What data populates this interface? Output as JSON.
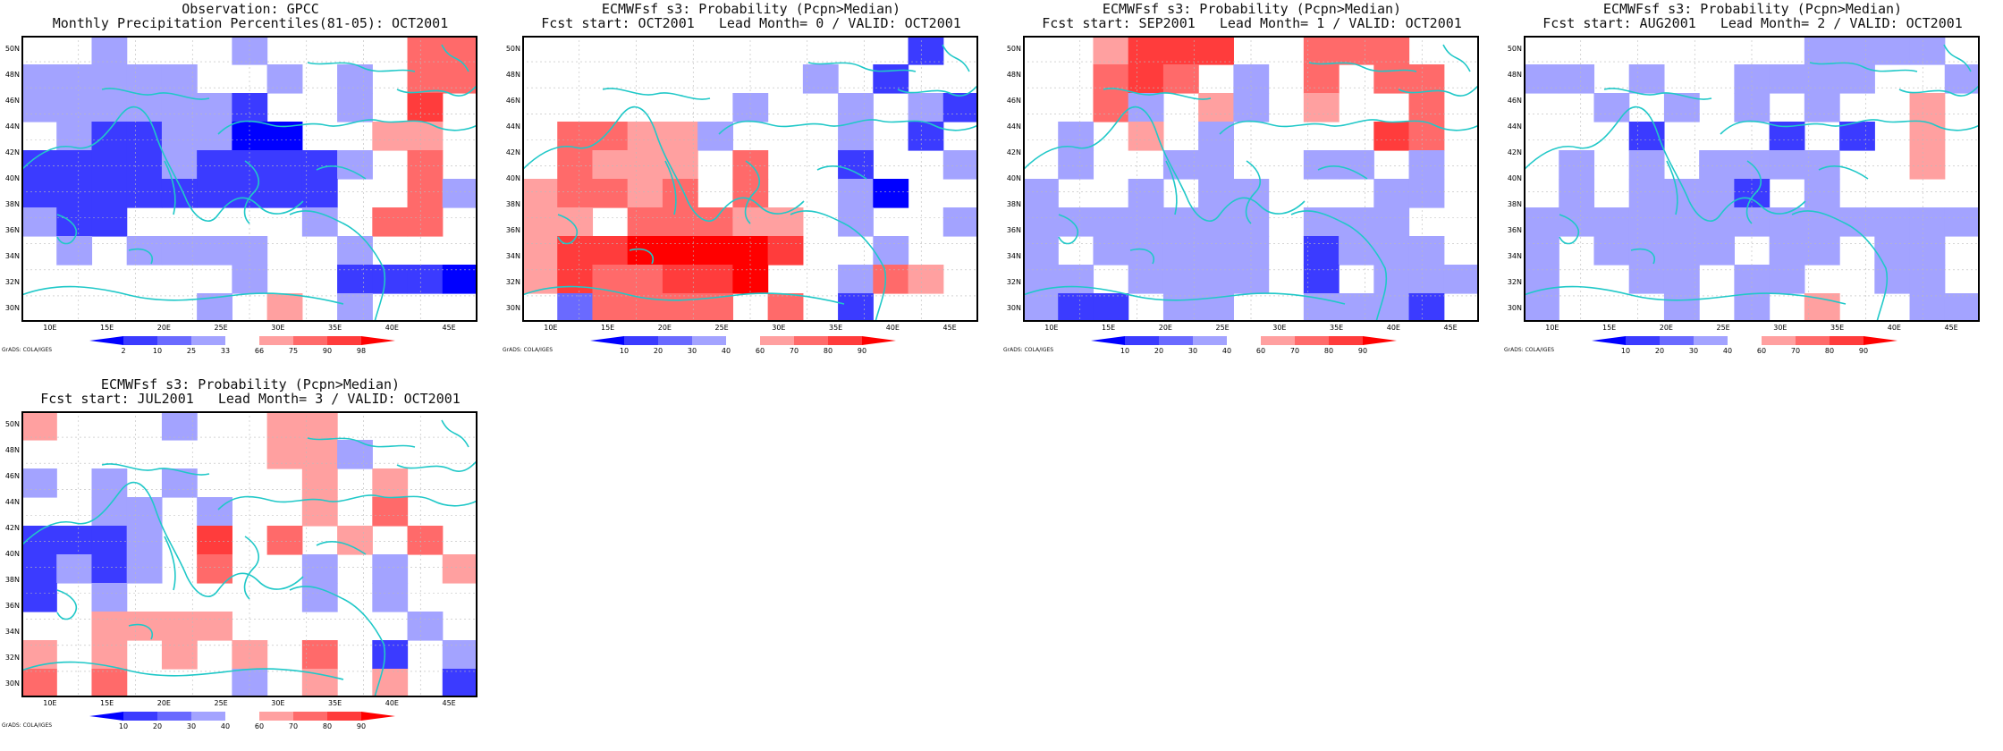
{
  "panels": [
    {
      "title1": "Observation: GPCC",
      "title2": "Monthly Precipitation Percentiles(81-05): OCT2001",
      "colorbar_labels": [
        "2",
        "10",
        "25",
        "33",
        "66",
        "75",
        "90",
        "98"
      ],
      "colorbar_colors": [
        "#0000ff",
        "#3b3bff",
        "#6a6aff",
        "#a3a3ff",
        "#ffffff",
        "#ffa0a0",
        "#ff6a6a",
        "#ff3c3c",
        "#ff0000"
      ],
      "grads_label": "GrADS: COLA/IGES"
    },
    {
      "title1": "ECMWFsf s3: Probability (Pcpn>Median)",
      "title2": "Fcst start: OCT2001   Lead Month= 0 / VALID: OCT2001",
      "colorbar_labels": [
        "10",
        "20",
        "30",
        "40",
        "60",
        "70",
        "80",
        "90"
      ],
      "colorbar_colors": [
        "#0000ff",
        "#3b3bff",
        "#6a6aff",
        "#a3a3ff",
        "#ffffff",
        "#ffa0a0",
        "#ff6a6a",
        "#ff3c3c",
        "#ff0000"
      ],
      "grads_label": "GrADS: COLA/IGES"
    },
    {
      "title1": "ECMWFsf s3: Probability (Pcpn>Median)",
      "title2": "Fcst start: SEP2001   Lead Month= 1 / VALID: OCT2001",
      "colorbar_labels": [
        "10",
        "20",
        "30",
        "40",
        "60",
        "70",
        "80",
        "90"
      ],
      "colorbar_colors": [
        "#0000ff",
        "#3b3bff",
        "#6a6aff",
        "#a3a3ff",
        "#ffffff",
        "#ffa0a0",
        "#ff6a6a",
        "#ff3c3c",
        "#ff0000"
      ],
      "grads_label": "GrADS: COLA/IGES"
    },
    {
      "title1": "ECMWFsf s3: Probability (Pcpn>Median)",
      "title2": "Fcst start: AUG2001   Lead Month= 2 / VALID: OCT2001",
      "colorbar_labels": [
        "10",
        "20",
        "30",
        "40",
        "60",
        "70",
        "80",
        "90"
      ],
      "colorbar_colors": [
        "#0000ff",
        "#3b3bff",
        "#6a6aff",
        "#a3a3ff",
        "#ffffff",
        "#ffa0a0",
        "#ff6a6a",
        "#ff3c3c",
        "#ff0000"
      ],
      "grads_label": "GrADS: COLA/IGES"
    },
    {
      "title1": "ECMWFsf s3: Probability (Pcpn>Median)",
      "title2": "Fcst start: JUL2001   Lead Month= 3 / VALID: OCT2001",
      "colorbar_labels": [
        "10",
        "20",
        "30",
        "40",
        "60",
        "70",
        "80",
        "90"
      ],
      "colorbar_colors": [
        "#0000ff",
        "#3b3bff",
        "#6a6aff",
        "#a3a3ff",
        "#ffffff",
        "#ffa0a0",
        "#ff6a6a",
        "#ff3c3c",
        "#ff0000"
      ],
      "grads_label": "GrADS: COLA/IGES"
    }
  ],
  "axes": {
    "lat_labels": [
      "50N",
      "48N",
      "46N",
      "44N",
      "42N",
      "40N",
      "38N",
      "36N",
      "34N",
      "32N",
      "30N"
    ],
    "lon_labels": [
      "10E",
      "15E",
      "20E",
      "25E",
      "30E",
      "35E",
      "40E",
      "45E"
    ]
  },
  "grids": [
    [
      "..3...3....66",
      "33333..3.3.66",
      "3333332..3.7.",
      ".3223311..55.",
      "2222322223.6.",
      "222222222..63",
      "322.....3.66.",
      ".3.3333..3...",
      "......3..2221",
      ".....3.5.3..."
    ],
    [
      "...........2.",
      "........3.2..",
      "......3..3.32",
      ".66553...3.2.",
      ".6555.6..2..3",
      "56656.6..31..",
      "55.66655.3..3",
      "57788887..3..",
      "5766778..365.",
      ".46666.6.2..."
    ],
    [
      "..5777..666..",
      "..676.3.6.66.",
      "..63.53.5..6.",
      ".3.5.3....76.",
      ".3..33..33.3.",
      "3..3.33...33.",
      "3333333.333..",
      "3.33333.2333.",
      "33.3333.2.333",
      "322.33..3332."
    ],
    [
      "........3333.",
      "33.3..3333..3",
      "..3.3.3.3..5.",
      "...2...2.2.5.",
      ".3.3.3333..5.",
      ".3.3332.3....",
      "3333333333333",
      "3.3333.33.33.",
      "3..33.33..33.",
      "3...3.3.5..33"
    ],
    [
      "5...3..55....",
      ".......553...",
      "3.3.3...5.5..",
      "..33.3..5.6..",
      "2223.7.6.5.6.",
      "2323.6..3.3.5",
      "2.3.....3.3..",
      "..5555.....3.",
      "5.5.5.5.6.2.3",
      "6.6...3.5.5.2"
    ]
  ]
}
